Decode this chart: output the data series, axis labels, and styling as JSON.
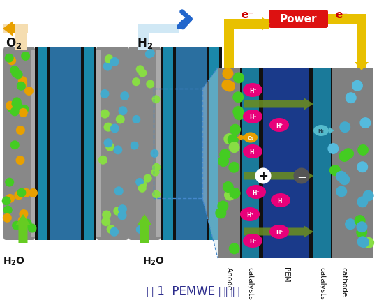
{
  "title": "图 1  PEMWE 示意图",
  "title_fontsize": 12,
  "title_color": "#2c2c8c",
  "bg_color": "#ffffff",
  "power_text": "Power",
  "power_bg": "#dd1111",
  "power_fg": "#ffffff",
  "power_fontsize": 12,
  "electron_color": "#cc0000",
  "arrow_yellow": "#e8c000",
  "detail_teal": "#1a7a9a",
  "pem_blue": "#1a3a8a",
  "catalyst_teal": "#1a7a9a",
  "anode_gray": "#888888",
  "cathode_gray": "#888888",
  "hplus_color": "#e8007a",
  "hplus_text": "#ffffff",
  "o2_bubble_color": "#e8a000",
  "h2_bubble_color": "#55bbcc",
  "green_ball": "#44cc22",
  "orange_ball": "#e8a000",
  "cyan_ball": "#44aacc",
  "green_arrow_color": "#6a8c20",
  "layer_labels": [
    "Anode",
    "catalysts",
    "PEM",
    "catalysts",
    "cathode"
  ],
  "layer_label_color": "#111111",
  "mea_blue1": "#1a6a8a",
  "mea_blue2": "#2288bb",
  "mea_blue3": "#33aacc",
  "left_bg_teal": "#44aacc"
}
